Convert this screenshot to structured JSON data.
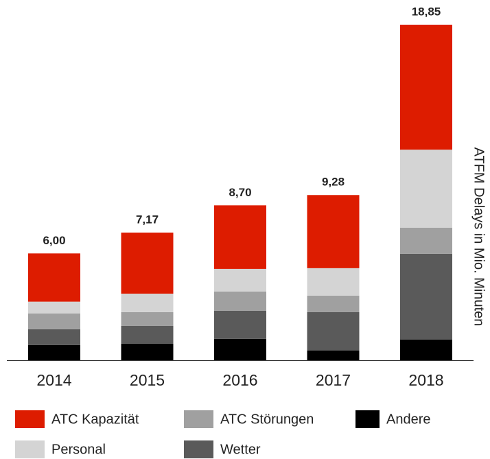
{
  "chart_data": {
    "type": "stacked-bar",
    "y_label": "ATFM Delays in Mio. Minuten",
    "categories": [
      "2014",
      "2015",
      "2016",
      "2017",
      "2018"
    ],
    "series": [
      {
        "name": "Andere",
        "color": "#000000",
        "values": [
          0.85,
          0.93,
          1.2,
          0.54,
          1.16
        ]
      },
      {
        "name": "Wetter",
        "color": "#5a5a5a",
        "values": [
          0.89,
          1.0,
          1.58,
          2.16,
          4.82
        ]
      },
      {
        "name": "ATC Störungen",
        "color": "#a0a0a0",
        "values": [
          0.89,
          0.77,
          1.08,
          0.93,
          1.46
        ]
      },
      {
        "name": "Personal",
        "color": "#d4d4d4",
        "values": [
          0.66,
          1.04,
          1.27,
          1.54,
          4.39
        ]
      },
      {
        "name": "ATC Kapazität",
        "color": "#dd1c00",
        "values": [
          2.71,
          3.43,
          3.57,
          4.11,
          7.02
        ]
      }
    ],
    "totals": [
      6.0,
      7.17,
      8.7,
      9.28,
      18.85
    ],
    "total_labels": [
      "6,00",
      "7,17",
      "8,70",
      "9,28",
      "18,85"
    ]
  }
}
